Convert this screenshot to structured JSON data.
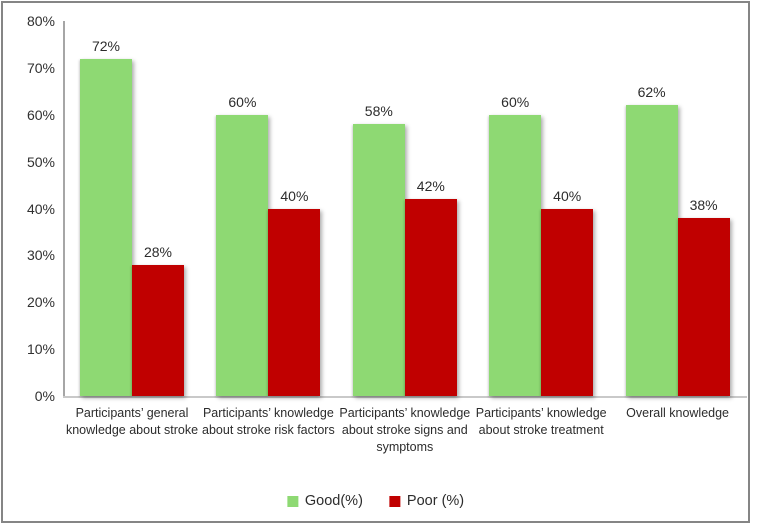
{
  "chart_data": {
    "type": "bar",
    "title": "",
    "categories": [
      "Participants’ general knowledge about stroke",
      "Participants’ knowledge about stroke risk factors",
      "Participants’ knowledge about stroke signs and symptoms",
      "Participants’ knowledge about stroke treatment",
      "Overall knowledge"
    ],
    "series": [
      {
        "name": "Good(%)",
        "color": "#8ED973",
        "values": [
          72,
          60,
          58,
          60,
          62
        ]
      },
      {
        "name": "Poor (%)",
        "color": "#C00000",
        "values": [
          28,
          40,
          42,
          40,
          38
        ]
      }
    ],
    "data_labels": true,
    "value_suffix": "%",
    "y_axis": {
      "min": 0,
      "max": 80,
      "step": 10,
      "tick_labels": [
        "0%",
        "10%",
        "20%",
        "30%",
        "40%",
        "50%",
        "60%",
        "70%",
        "80%"
      ]
    },
    "grid": false,
    "legend_position": "bottom",
    "frame_border_color": "#858585",
    "y_axis_line_color": "#A6A6A6",
    "x_axis_line_color": "#C9C9C9"
  }
}
